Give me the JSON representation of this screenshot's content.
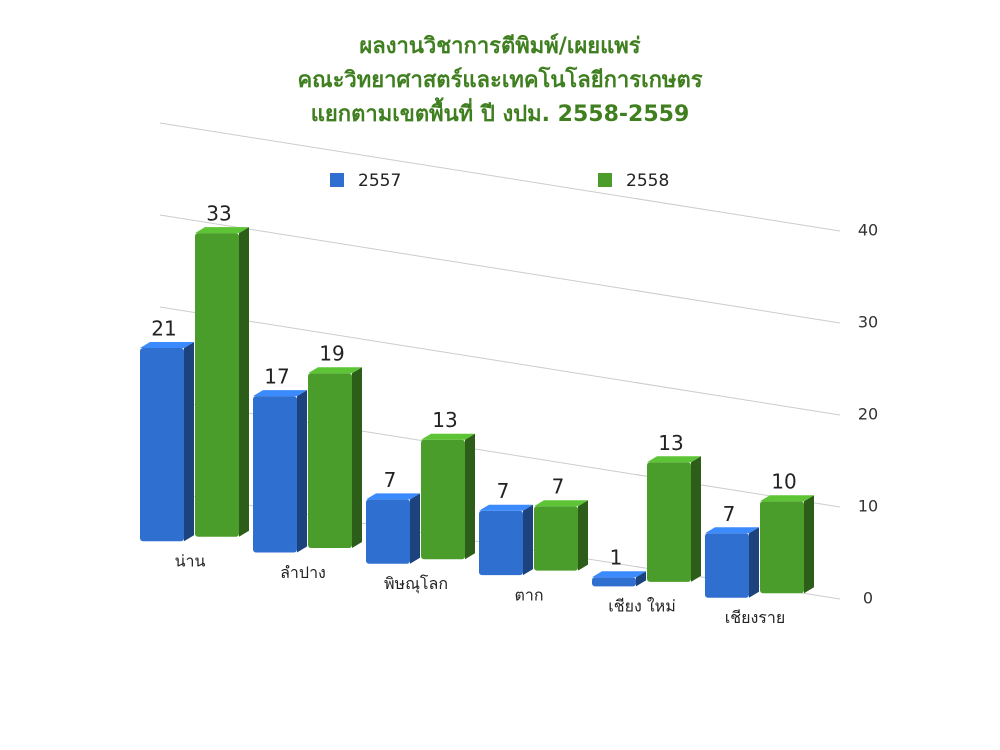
{
  "chart_data": {
    "type": "bar",
    "title": [
      "ผลงานวิชาการตีพิมพ์/เผยแพร่",
      "คณะวิทยาศาสตร์และเทคโนโลยีการเกษตร",
      "แยกตามเขตพื้นที่ ปี งปม. 2558-2559"
    ],
    "categories": [
      "น่าน",
      "ลำปาง",
      "พิษณุโลก",
      "ตาก",
      "เชียง ใหม่",
      "เชียงราย"
    ],
    "series": [
      {
        "name": "2557",
        "color": "#2f6fd0",
        "values": [
          21,
          17,
          7,
          7,
          1,
          7
        ]
      },
      {
        "name": "2558",
        "color": "#4a9d2a",
        "values": [
          33,
          19,
          13,
          7,
          13,
          10
        ]
      }
    ],
    "ylim": [
      0,
      40
    ],
    "yticks": [
      0,
      10,
      20,
      30,
      40
    ],
    "grid": true,
    "legend": "top"
  }
}
